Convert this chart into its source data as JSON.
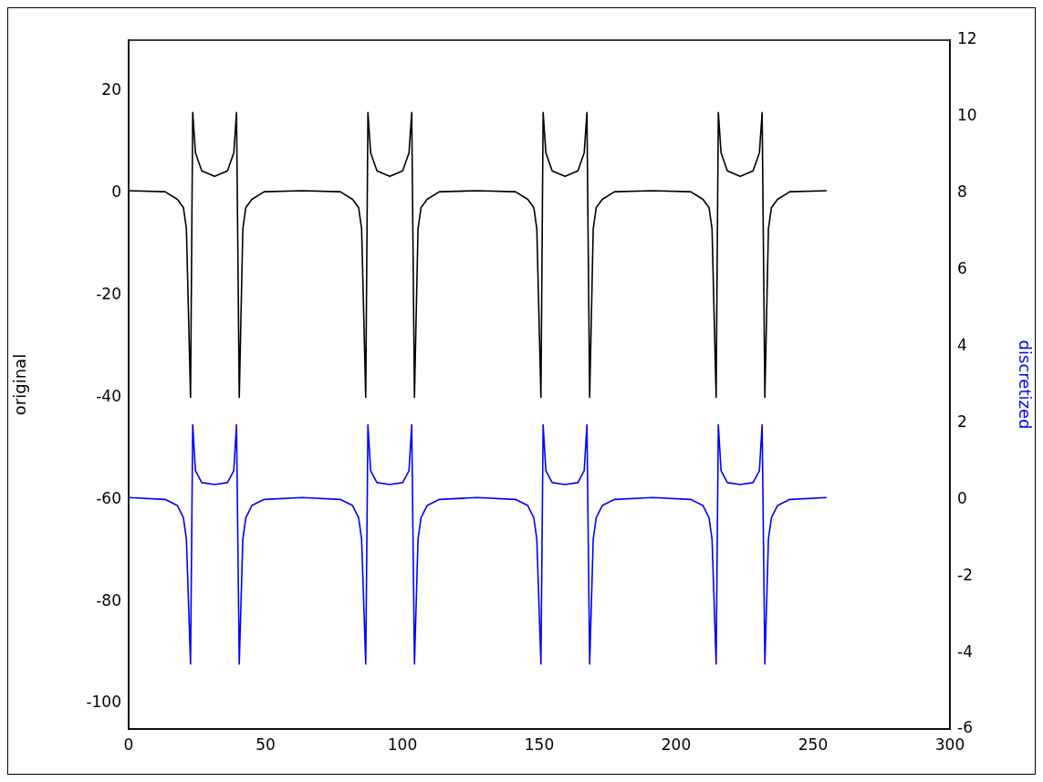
{
  "chart_data": {
    "type": "line",
    "ylabel": "original",
    "y2label": "discretized",
    "x": [
      0,
      13.3,
      17.8,
      20,
      21.1,
      22.6,
      23.4,
      24.4,
      26.7,
      31.4,
      36.1,
      38.4,
      39.4,
      40.4,
      41.7,
      42.8,
      45,
      49.5,
      63.4,
      77.3,
      81.8,
      84,
      85.1,
      86.6,
      87.4,
      88.4,
      90.7,
      95.4,
      100.1,
      102.4,
      103.4,
      104.4,
      105.7,
      106.8,
      109,
      113.5,
      127.4,
      141.3,
      145.8,
      148,
      149.1,
      150.6,
      151.4,
      152.4,
      154.7,
      159.4,
      164.1,
      166.4,
      167.4,
      168.4,
      169.7,
      170.8,
      173,
      177.5,
      191.4,
      205.3,
      209.8,
      212,
      213.1,
      214.6,
      215.4,
      216.4,
      218.7,
      223.4,
      228.1,
      230.4,
      231.4,
      232.4,
      233.7,
      234.8,
      237,
      241.5,
      255
    ],
    "series": [
      {
        "color": "#000000",
        "values": [
          0.5,
          0.3,
          -1.2,
          -2.8,
          -7,
          -40,
          15.8,
          7.9,
          4.4,
          3.3,
          4.4,
          7.9,
          15.8,
          -40,
          -7,
          -2.8,
          -1.2,
          0.3,
          0.5,
          0.3,
          -1.2,
          -2.8,
          -7,
          -40,
          15.8,
          7.9,
          4.4,
          3.3,
          4.4,
          7.9,
          15.8,
          -40,
          -7,
          -2.8,
          -1.2,
          0.3,
          0.5,
          0.3,
          -1.2,
          -2.8,
          -7,
          -40,
          15.8,
          7.9,
          4.4,
          3.3,
          4.4,
          7.9,
          15.8,
          -40,
          -7,
          -2.8,
          -1.2,
          0.3,
          0.5,
          0.3,
          -1.2,
          -2.8,
          -7,
          -40,
          15.8,
          7.9,
          4.4,
          3.3,
          4.4,
          7.9,
          15.8,
          -40,
          -7,
          -2.8,
          -1.2,
          0.3,
          0.5
        ]
      },
      {
        "color": "#0000ff",
        "axis": "y2",
        "values": [
          0.05,
          0,
          -0.16,
          -0.48,
          -1.04,
          -4.3,
          1.95,
          0.75,
          0.44,
          0.39,
          0.44,
          0.75,
          1.95,
          -4.3,
          -1.04,
          -0.48,
          -0.16,
          0,
          0.05,
          0,
          -0.16,
          -0.48,
          -1.04,
          -4.3,
          1.95,
          0.75,
          0.44,
          0.39,
          0.44,
          0.75,
          1.95,
          -4.3,
          -1.04,
          -0.48,
          -0.16,
          0,
          0.05,
          0,
          -0.16,
          -0.48,
          -1.04,
          -4.3,
          1.95,
          0.75,
          0.44,
          0.39,
          0.44,
          0.75,
          1.95,
          -4.3,
          -1.04,
          -0.48,
          -0.16,
          0,
          0.05,
          0,
          -0.16,
          -0.48,
          -1.04,
          -4.3,
          1.95,
          0.75,
          0.44,
          0.39,
          0.44,
          0.75,
          1.95,
          -4.3,
          -1.04,
          -0.48,
          -0.16,
          0,
          0.05
        ]
      }
    ],
    "xlim": [
      0,
      300
    ],
    "xticks": [
      0,
      50,
      100,
      150,
      200,
      250,
      300
    ],
    "ylim": [
      -105,
      30
    ],
    "yticks": [
      -100,
      -80,
      -60,
      -40,
      -20,
      0,
      20
    ],
    "y2lim": [
      -6,
      12
    ],
    "y2ticks": [
      -6,
      -4,
      -2,
      0,
      2,
      4,
      6,
      8,
      10,
      12
    ],
    "grid": false,
    "legend": false,
    "marker": "none",
    "line_style": "solid"
  }
}
